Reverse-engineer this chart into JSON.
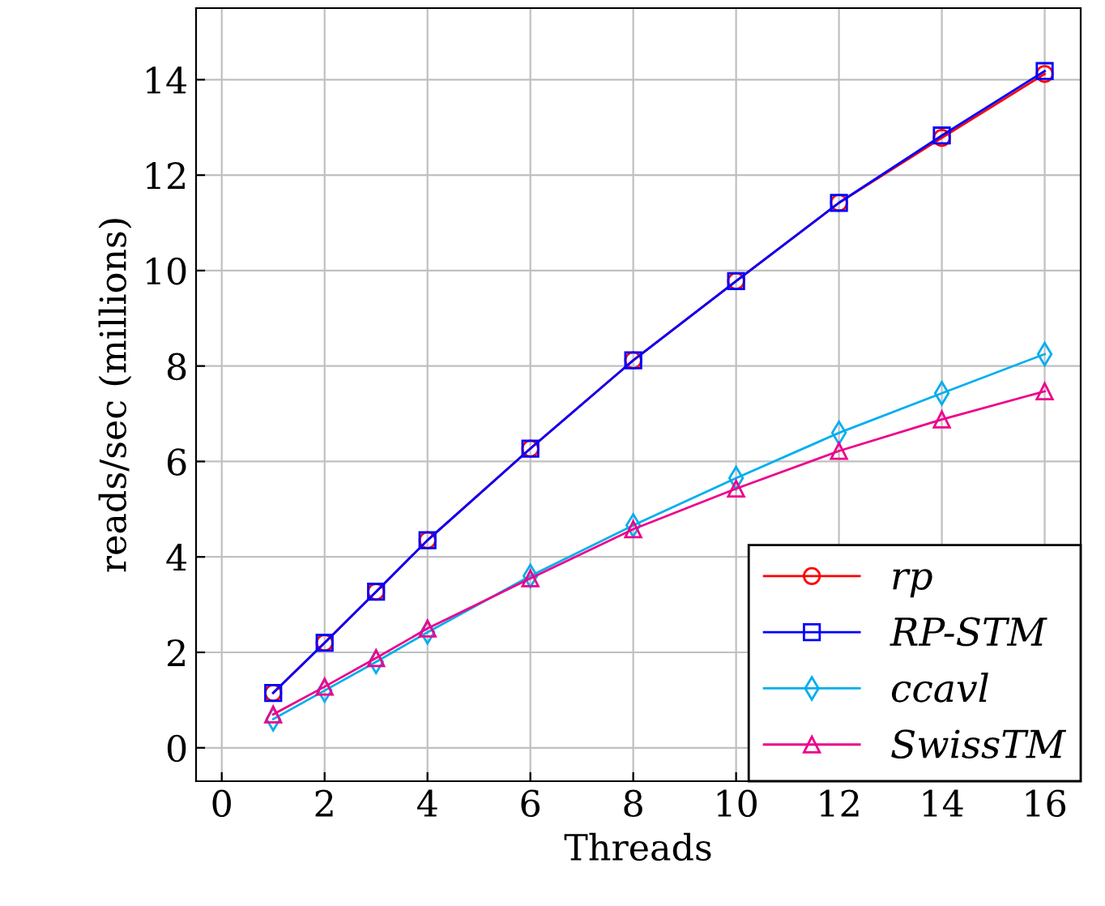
{
  "chart_data": {
    "type": "line",
    "xlabel": "Threads",
    "ylabel": "reads/sec (millions)",
    "x": [
      1,
      2,
      3,
      4,
      6,
      8,
      10,
      12,
      14,
      16
    ],
    "series": [
      {
        "name": "rp",
        "color": "#ff0000",
        "marker": "circle",
        "values": [
          1.15,
          2.2,
          3.27,
          4.35,
          6.27,
          8.12,
          9.78,
          11.42,
          12.78,
          14.12
        ]
      },
      {
        "name": "RP-STM",
        "color": "#0000ff",
        "marker": "square",
        "values": [
          1.15,
          2.2,
          3.27,
          4.35,
          6.27,
          8.12,
          9.78,
          11.42,
          12.83,
          14.18
        ]
      },
      {
        "name": "ccavl",
        "color": "#00aeef",
        "marker": "diamond",
        "values": [
          0.6,
          1.2,
          1.8,
          2.42,
          3.6,
          4.66,
          5.65,
          6.6,
          7.43,
          8.25
        ]
      },
      {
        "name": "SwissTM",
        "color": "#ec008c",
        "marker": "triangle",
        "values": [
          0.7,
          1.28,
          1.88,
          2.5,
          3.55,
          4.58,
          5.43,
          6.22,
          6.88,
          7.47
        ]
      }
    ],
    "xlim": [
      -0.5,
      16.7
    ],
    "xticks": [
      0,
      2,
      4,
      6,
      8,
      10,
      12,
      14,
      16
    ],
    "ylim": [
      -0.7,
      15.5
    ],
    "yticks": [
      0,
      2,
      4,
      6,
      8,
      10,
      12,
      14
    ],
    "grid": true,
    "legend": "bottom right",
    "line_style": "solid"
  }
}
